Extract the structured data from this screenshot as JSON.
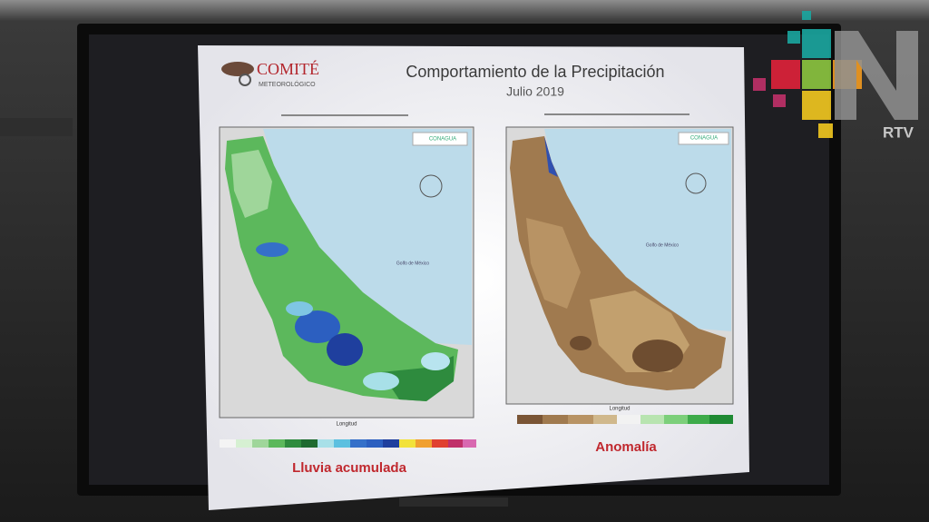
{
  "slide": {
    "logo": {
      "name": "COMITÉ",
      "subtitle": "METEOROLÓGICO"
    },
    "title": "Comportamiento de la Precipitación",
    "subtitle": "Julio 2019",
    "maps": [
      {
        "organization": "CONAGUA",
        "sea_label": "Golfo de México",
        "x_axis": "Longitud",
        "caption": "Lluvia acumulada"
      },
      {
        "organization": "CONAGUA",
        "sea_label": "Golfo de México",
        "x_axis": "Longitud",
        "caption": "Anomalía"
      }
    ]
  },
  "watermark": {
    "label": "RTV"
  }
}
